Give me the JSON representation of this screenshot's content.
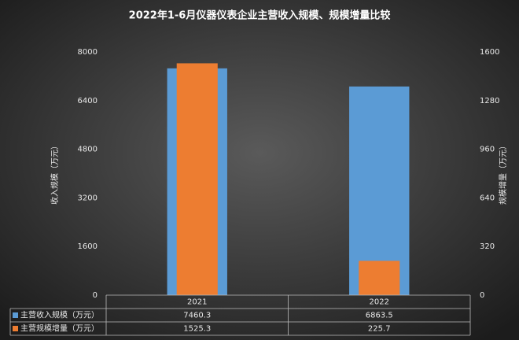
{
  "chart_data": {
    "type": "bar",
    "title": "2022年1-6月仪器仪表企业主营收入规模、规模增量比较",
    "categories": [
      "2021",
      "2022"
    ],
    "series": [
      {
        "name": "主营收入规模（万元）",
        "color": "#5b9bd5",
        "values": [
          7460.3,
          6863.5
        ]
      },
      {
        "name": "主营规模增量（万元）",
        "color": "#ed7d31",
        "values": [
          1525.3,
          225.7
        ],
        "axis": "y2"
      }
    ],
    "ylabel": "收入规模（万元）",
    "y2label": "规模增量（万元）",
    "ylim": [
      0,
      8000
    ],
    "yticks": [
      0,
      1600,
      3200,
      4800,
      6400,
      8000
    ],
    "y2lim": [
      0,
      1600
    ],
    "y2ticks": [
      0,
      320,
      640,
      960,
      1280,
      1600
    ],
    "grid": false,
    "data_table": true
  }
}
